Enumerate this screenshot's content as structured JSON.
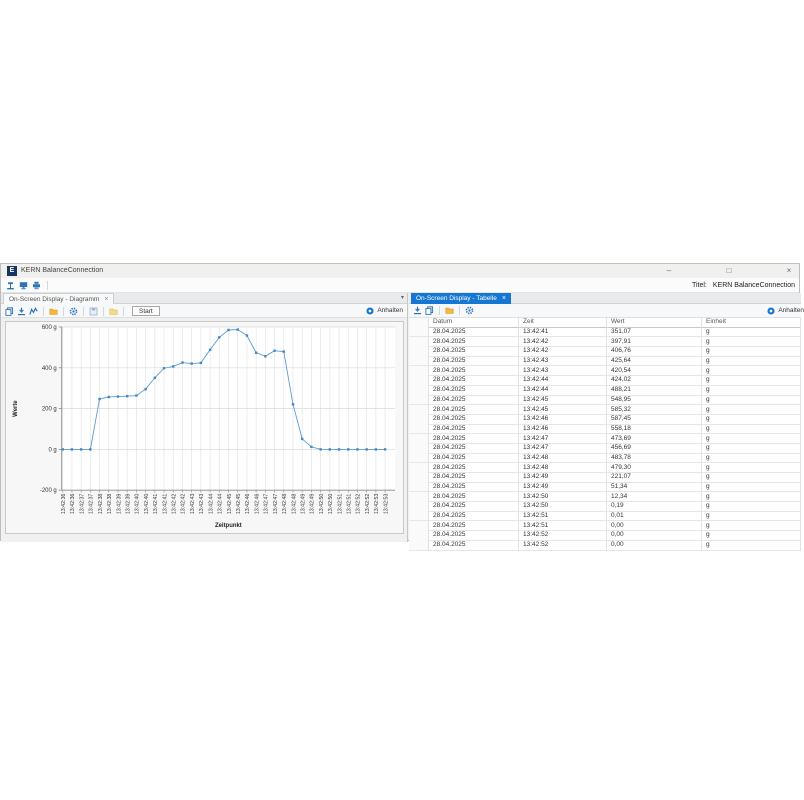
{
  "window": {
    "title": "KERN BalanceConnection",
    "logo_letter": "E",
    "controls": {
      "minimize": "–",
      "maximize": "□",
      "close": "×"
    }
  },
  "main_toolbar": {
    "icons": [
      "balance-device-icon",
      "display-device-icon",
      "printer-device-icon"
    ],
    "title_label": "Titel:",
    "title_value": "KERN BalanceConnection"
  },
  "left_panel": {
    "tab": {
      "label": "On-Screen Display - Diagramm",
      "close": "×"
    },
    "chevron": "▾",
    "toolbar": {
      "icons": [
        "copy-icon",
        "export-icon",
        "chart-icon",
        "open-folder-icon",
        "gear-icon",
        "save-icon",
        "folder-icon"
      ],
      "start_label": "Start",
      "stop_label": "Anhalten"
    }
  },
  "right_panel": {
    "tab": {
      "label": "On-Screen Display - Tabelle",
      "close": "×"
    },
    "toolbar": {
      "icons": [
        "export-icon",
        "copy-icon",
        "open-folder-icon",
        "gear-icon"
      ],
      "stop_label": "Anhalten"
    },
    "table": {
      "columns": [
        "Datum",
        "Zeit",
        "Wert",
        "Einheit"
      ],
      "rows": [
        [
          "28.04.2025",
          "13:42:41",
          "351,07",
          "g"
        ],
        [
          "28.04.2025",
          "13:42:42",
          "397,91",
          "g"
        ],
        [
          "28.04.2025",
          "13:42:42",
          "406,76",
          "g"
        ],
        [
          "28.04.2025",
          "13:42:43",
          "425,64",
          "g"
        ],
        [
          "28.04.2025",
          "13:42:43",
          "420,54",
          "g"
        ],
        [
          "28.04.2025",
          "13:42:44",
          "424,02",
          "g"
        ],
        [
          "28.04.2025",
          "13:42:44",
          "488,21",
          "g"
        ],
        [
          "28.04.2025",
          "13:42:45",
          "548,95",
          "g"
        ],
        [
          "28.04.2025",
          "13:42:45",
          "585,32",
          "g"
        ],
        [
          "28.04.2025",
          "13:42:46",
          "587,45",
          "g"
        ],
        [
          "28.04.2025",
          "13:42:46",
          "558,18",
          "g"
        ],
        [
          "28.04.2025",
          "13:42:47",
          "473,69",
          "g"
        ],
        [
          "28.04.2025",
          "13:42:47",
          "456,69",
          "g"
        ],
        [
          "28.04.2025",
          "13:42:48",
          "483,78",
          "g"
        ],
        [
          "28.04.2025",
          "13:42:48",
          "479,30",
          "g"
        ],
        [
          "28.04.2025",
          "13:42:49",
          "221,07",
          "g"
        ],
        [
          "28.04.2025",
          "13:42:49",
          "51,34",
          "g"
        ],
        [
          "28.04.2025",
          "13:42:50",
          "12,34",
          "g"
        ],
        [
          "28.04.2025",
          "13:42:50",
          "0,19",
          "g"
        ],
        [
          "28.04.2025",
          "13:42:51",
          "0,01",
          "g"
        ],
        [
          "28.04.2025",
          "13:42:51",
          "0,00",
          "g"
        ],
        [
          "28.04.2025",
          "13:42:52",
          "0,00",
          "g"
        ],
        [
          "28.04.2025",
          "13:42:52",
          "0,00",
          "g"
        ]
      ]
    }
  },
  "chart_data": {
    "type": "line",
    "title": "",
    "xlabel": "Zeitpunkt",
    "ylabel": "Werte",
    "ylim": [
      -200,
      600
    ],
    "yticks": [
      600,
      400,
      200,
      0,
      -200
    ],
    "ytick_suffix": " g",
    "grid": true,
    "legend": false,
    "line_color": "#5b9bd5",
    "marker_color": "#4186c6",
    "x": [
      "13:42:36",
      "13:42:36",
      "13:42:37",
      "13:42:37",
      "13:42:38",
      "13:42:38",
      "13:42:39",
      "13:42:39",
      "13:42:40",
      "13:42:40",
      "13:42:41",
      "13:42:41",
      "13:42:42",
      "13:42:42",
      "13:42:43",
      "13:42:43",
      "13:42:44",
      "13:42:44",
      "13:42:45",
      "13:42:45",
      "13:42:46",
      "13:42:46",
      "13:42:47",
      "13:42:47",
      "13:42:48",
      "13:42:48",
      "13:42:49",
      "13:42:49",
      "13:42:50",
      "13:42:50",
      "13:42:51",
      "13:42:51",
      "13:42:52",
      "13:42:52",
      "13:42:53",
      "13:42:53"
    ],
    "values": [
      0,
      0,
      0,
      0,
      247,
      257,
      259,
      261,
      264,
      295,
      351.07,
      397.91,
      406.76,
      425.64,
      420.54,
      424.02,
      488.21,
      548.95,
      585.32,
      587.45,
      558.18,
      473.69,
      456.69,
      483.78,
      479.3,
      221.07,
      51.34,
      12.34,
      0.19,
      0.01,
      0,
      0,
      0,
      0,
      0,
      0
    ]
  }
}
